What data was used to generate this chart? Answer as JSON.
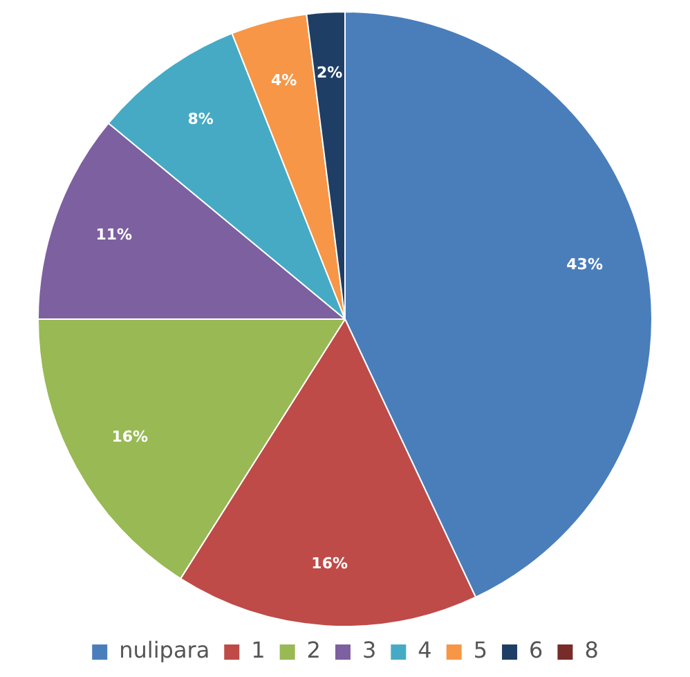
{
  "chart_data": {
    "type": "pie",
    "categories": [
      "nulipara",
      "1",
      "2",
      "3",
      "4",
      "5",
      "6",
      "8"
    ],
    "values": [
      43,
      16,
      16,
      11,
      8,
      4,
      2,
      0
    ],
    "colors": [
      "#4a7ebb",
      "#be4b48",
      "#98b954",
      "#7d60a0",
      "#46aac5",
      "#f79646",
      "#1f3e66",
      "#772c2a"
    ],
    "value_labels": [
      "43%",
      "16%",
      "16%",
      "11%",
      "8%",
      "4%",
      "2%",
      null
    ],
    "legend": "bottom"
  }
}
